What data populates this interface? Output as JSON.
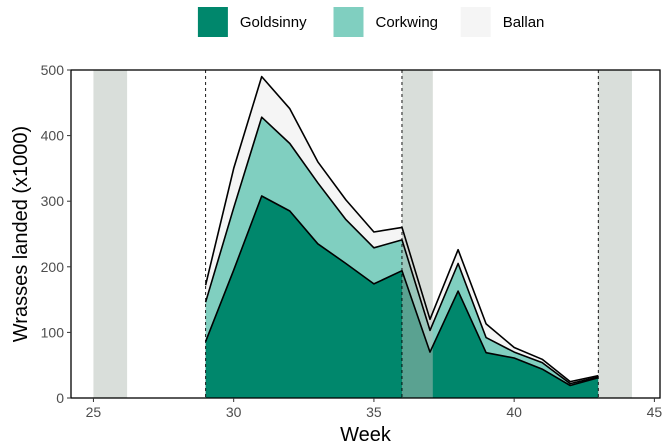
{
  "chart_data": {
    "type": "area",
    "stacked": true,
    "xlabel": "Week",
    "ylabel": "Wrasses landed (x1000)",
    "xlim": [
      24.2,
      45.2
    ],
    "ylim": [
      0,
      500
    ],
    "xticks": [
      25,
      30,
      35,
      40,
      45
    ],
    "yticks": [
      0,
      100,
      200,
      300,
      400,
      500
    ],
    "grid": false,
    "legend_position": "top",
    "x": [
      29,
      30,
      31,
      32,
      33,
      34,
      35,
      36,
      37,
      38,
      39,
      40,
      41,
      42,
      43
    ],
    "series": [
      {
        "name": "Goldsinny",
        "color": "#00876C",
        "values": [
          86,
          195,
          308,
          285,
          235,
          205,
          174,
          194,
          70,
          163,
          69,
          61,
          44,
          19,
          31
        ]
      },
      {
        "name": "Corkwing",
        "color": "#80CFC0",
        "values": [
          60,
          95,
          120,
          103,
          93,
          67,
          55,
          47,
          33,
          42,
          23,
          9,
          10,
          3,
          1
        ]
      },
      {
        "name": "Ballan",
        "color": "#F5F5F5",
        "values": [
          26,
          60,
          62,
          53,
          32,
          30,
          24,
          19,
          17,
          21,
          21,
          7,
          5,
          3,
          2
        ]
      }
    ],
    "shaded_weeks": [
      [
        25,
        26.2
      ],
      [
        36,
        37.1
      ],
      [
        43,
        44.2
      ]
    ],
    "dashed_vlines": [
      29,
      36,
      43
    ]
  }
}
